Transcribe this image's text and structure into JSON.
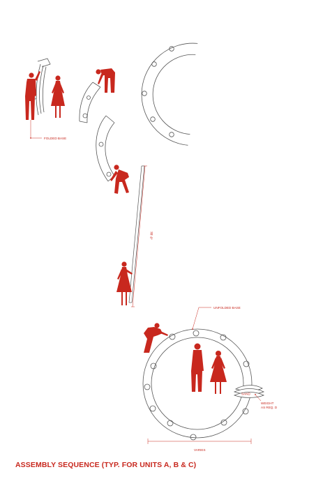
{
  "sheet": {
    "title": "ASSEMBLY SEQUENCE (TYP. FOR UNITS A, B & C)",
    "accent_color": "#c8281e",
    "line_color": "#555555"
  },
  "labels": {
    "folded_base": "FOLDED BASE",
    "length": "38'-0\"",
    "unfolded_base": "UNFOLDED BASE",
    "sand": "SAND",
    "weight": "WEIGHT",
    "as_req_d": "AS REQ. D",
    "varies": "VARIES"
  },
  "figures": [
    "person-carrying-folded-base",
    "standing-woman",
    "person-bending-to-base",
    "person-unfolding-base",
    "person-lifting-pole",
    "person-connecting-ring",
    "standing-man",
    "standing-woman-2"
  ]
}
